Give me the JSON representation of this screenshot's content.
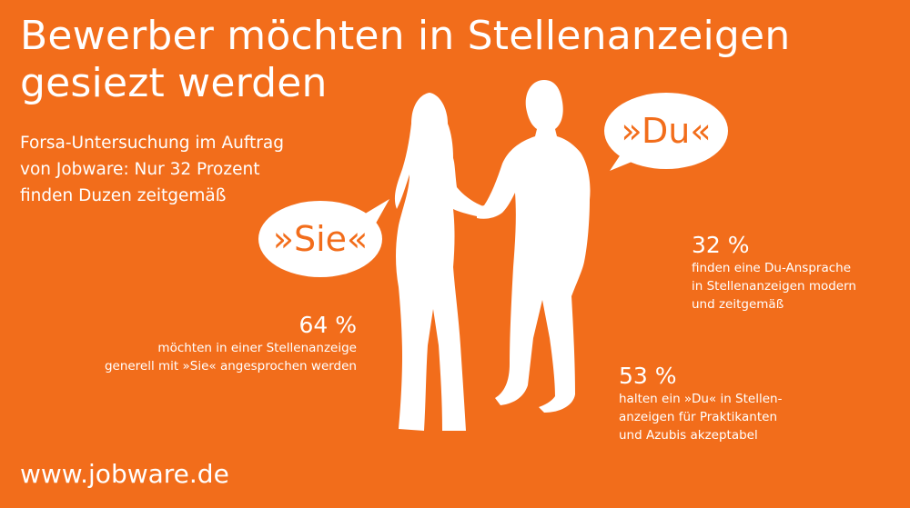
{
  "title": {
    "line1": "Bewerber möchten in Stellenanzeigen",
    "line2": "gesiezt werden"
  },
  "subtitle": {
    "line1": "Forsa-Untersuchung im Auftrag",
    "line2": "von Jobware: Nur 32 Prozent",
    "line3": "finden Duzen zeitgemäß"
  },
  "bubbles": {
    "sie": "»Sie«",
    "du": "»Du«"
  },
  "stats": {
    "sie": {
      "percent": "64 %",
      "line1": "möchten in einer Stellenanzeige",
      "line2": "generell mit »Sie« angesprochen werden"
    },
    "du_modern": {
      "percent": "32 %",
      "line1": "finden eine Du-Ansprache",
      "line2": "in Stellenanzeigen modern",
      "line3": "und zeitgemäß"
    },
    "du_interns": {
      "percent": "53 %",
      "line1": "halten ein »Du« in Stellen-",
      "line2": "anzeigen für Praktikanten",
      "line3": "und Azubis akzeptabel"
    }
  },
  "footer": {
    "url": "www.jobware.de"
  },
  "colors": {
    "background": "#f26d1b",
    "foreground": "#ffffff"
  }
}
